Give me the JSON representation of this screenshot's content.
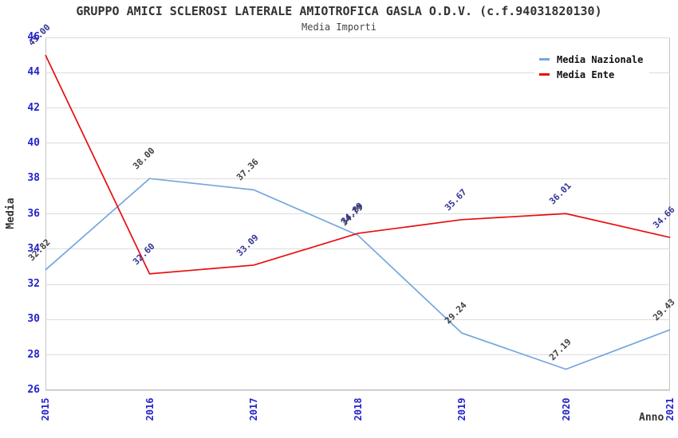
{
  "header": {
    "title": "GRUPPO AMICI SCLEROSI LATERALE AMIOTROFICA GASLA O.D.V. (c.f.94031820130)",
    "subtitle": "Media Importi"
  },
  "chart_data": {
    "type": "line",
    "title": "GRUPPO AMICI SCLEROSI LATERALE AMIOTROFICA GASLA O.D.V. (c.f.94031820130)",
    "subtitle": "Media Importi",
    "categories": [
      "2015",
      "2016",
      "2017",
      "2018",
      "2019",
      "2020",
      "2021"
    ],
    "series": [
      {
        "name": "Media Nazionale",
        "color": "#74a7de",
        "label_color": "#404040",
        "values": [
          32.82,
          38.0,
          37.36,
          34.79,
          29.24,
          27.19,
          29.43
        ]
      },
      {
        "name": "Media Ente",
        "color": "#e80c0c",
        "label_color": "#333399",
        "values": [
          45.0,
          32.6,
          33.09,
          34.89,
          35.67,
          36.01,
          34.66
        ]
      }
    ],
    "xlabel": "Anno",
    "ylabel": "Media",
    "ylim": [
      26,
      46
    ],
    "ytick_step": 2,
    "yticks": [
      26,
      28,
      30,
      32,
      34,
      36,
      38,
      40,
      42,
      44,
      46
    ],
    "grid": "horizontal-bands",
    "band_colors": [
      "#f0f0f0",
      "#ffffff"
    ],
    "tick_label_color": "#2323cc",
    "legend_position": "top-right"
  }
}
